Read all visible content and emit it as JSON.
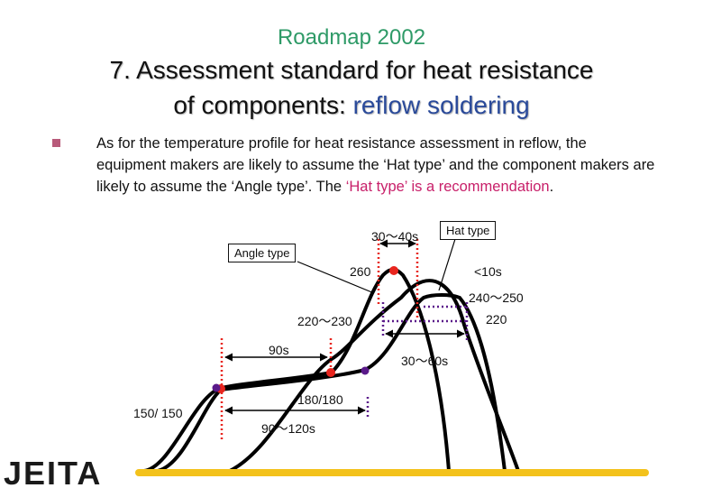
{
  "slide": {
    "subtitle": "Roadmap 2002",
    "title_line1": "7. Assessment standard for heat resistance",
    "title_line2_prefix": "of components: ",
    "title_line2_highlight": "reflow soldering",
    "body_text": "As for the temperature profile for heat resistance assessment in reflow, the equipment makers are likely to assume the ‘Hat type’ and the component makers are likely to assume the ‘Angle type’. The ",
    "body_highlight": "‘Hat type’ is a recommendation",
    "body_end": "."
  },
  "diagram": {
    "labels": {
      "hat_type": "Hat type",
      "angle_type": "Angle type",
      "range_30_40s": "30～40s",
      "peak_260": "260",
      "lt_10s": "<10s",
      "range_240_250": "240～250",
      "range_220_230": "220～230",
      "value_220": "220",
      "dur_90s": "90s",
      "range_30_60s": "30～60s",
      "value_150_150": "150/ 150",
      "value_180_180": "180/180",
      "range_90_120s": "90～120s"
    },
    "colors": {
      "curve": "#000000",
      "angle_markers": "#e8251e",
      "hat_markers": "#5a1a8a",
      "bottom_bar": "#f3c21c"
    }
  },
  "footer": {
    "logo_text": "JEITA",
    "logo_icon": "jeita-logo"
  }
}
